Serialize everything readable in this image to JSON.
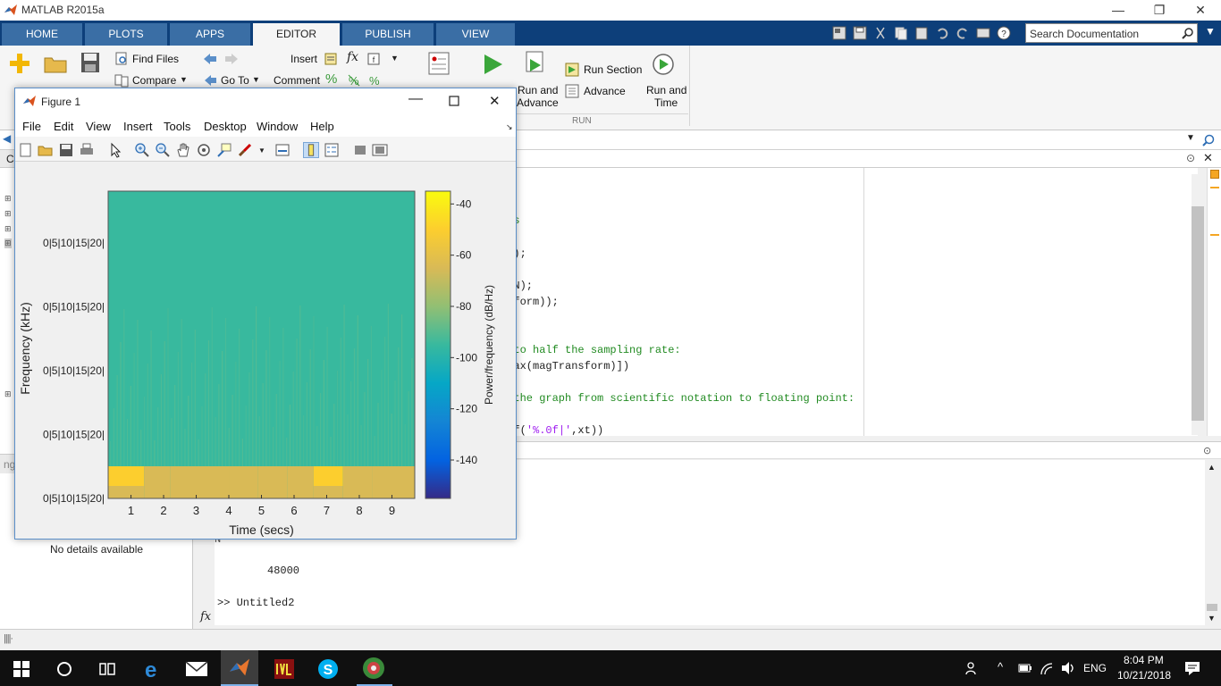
{
  "window": {
    "title": "MATLAB R2015a",
    "controls": {
      "minimize": "—",
      "restore": "❐",
      "close": "✕"
    }
  },
  "ribbon": {
    "tabs": [
      "HOME",
      "PLOTS",
      "APPS",
      "EDITOR",
      "PUBLISH",
      "VIEW"
    ],
    "active_tab": "EDITOR",
    "search_placeholder": "Search Documentation",
    "labels": {
      "find_files": "Find Files",
      "compare": "Compare",
      "go_to": "Go To",
      "insert": "Insert",
      "comment": "Comment",
      "run_section": "Run Section",
      "advance": "Advance",
      "run_and_advance_1": "Run and",
      "run_and_advance_2": "Advance",
      "run_and_time_1": "Run and",
      "run_and_time_2": "Time",
      "run_group": "RUN",
      "fx": "fx",
      "percent": "%"
    }
  },
  "editor": {
    "lines": [
      {
        "text": "nts",
        "class": "green"
      },
      {
        "text": "rm);",
        "class": ""
      },
      {
        "text": "2,N);",
        "class": ""
      },
      {
        "text": "nsform));",
        "class": ""
      },
      {
        "text": "o to half the sampling rate:",
        "class": "green"
      },
      {
        "text": " max(magTransform)])",
        "class": ""
      },
      {
        "text": "f the graph from scientific notation to floating point:",
        "class": "green"
      }
    ],
    "last_line": {
      "prefix": "ntf(",
      "string": "'%.0f|'",
      "suffix": ",xt))"
    }
  },
  "left_panel": {
    "details_text": "No details available",
    "fragment_c": "C",
    "fragment_ng": "ng"
  },
  "command_window": {
    "fragment": "N",
    "value": "48000",
    "prompt_line": ">> Untitled2",
    "fx": "fx"
  },
  "figure": {
    "title": "Figure 1",
    "menu": [
      "File",
      "Edit",
      "View",
      "Insert",
      "Tools",
      "Desktop",
      "Window",
      "Help"
    ]
  },
  "chart_data": {
    "type": "heatmap",
    "xlabel": "Time (secs)",
    "ylabel": "Frequency (kHz)",
    "x_ticks": [
      1,
      2,
      3,
      4,
      5,
      6,
      7,
      8,
      9
    ],
    "x_range": [
      0.3,
      9.7
    ],
    "y_tick_labels": [
      "0|5|10|15|20|",
      "0|5|10|15|20|",
      "0|5|10|15|20|",
      "0|5|10|15|20|",
      "0|5|10|15|20|"
    ],
    "colorbar": {
      "label": "Power/frequency (dB/Hz)",
      "ticks": [
        -40,
        -60,
        -80,
        -100,
        -120,
        -140
      ],
      "range": [
        -155,
        -35
      ],
      "colormap": [
        "#352a87",
        "#0363e1",
        "#1485d4",
        "#06a7c6",
        "#38b99e",
        "#92bf73",
        "#d9ba56",
        "#fcce2e",
        "#f9fb0e"
      ]
    },
    "background_level_db": -100,
    "low_band_segments": [
      {
        "t_start": 0.3,
        "t_end": 1.4,
        "level_db": -55
      },
      {
        "t_start": 1.4,
        "t_end": 2.2,
        "level_db": -60
      },
      {
        "t_start": 2.2,
        "t_end": 4.0,
        "level_db": -62
      },
      {
        "t_start": 4.0,
        "t_end": 4.9,
        "level_db": -58
      },
      {
        "t_start": 4.9,
        "t_end": 5.8,
        "level_db": -60
      },
      {
        "t_start": 5.8,
        "t_end": 6.6,
        "level_db": -62
      },
      {
        "t_start": 6.6,
        "t_end": 7.5,
        "level_db": -56
      },
      {
        "t_start": 7.5,
        "t_end": 8.4,
        "level_db": -58
      },
      {
        "t_start": 8.4,
        "t_end": 9.7,
        "level_db": -60
      }
    ],
    "grid": false
  },
  "taskbar": {
    "time": "8:04 PM",
    "date": "10/21/2018",
    "lang": "ENG"
  }
}
